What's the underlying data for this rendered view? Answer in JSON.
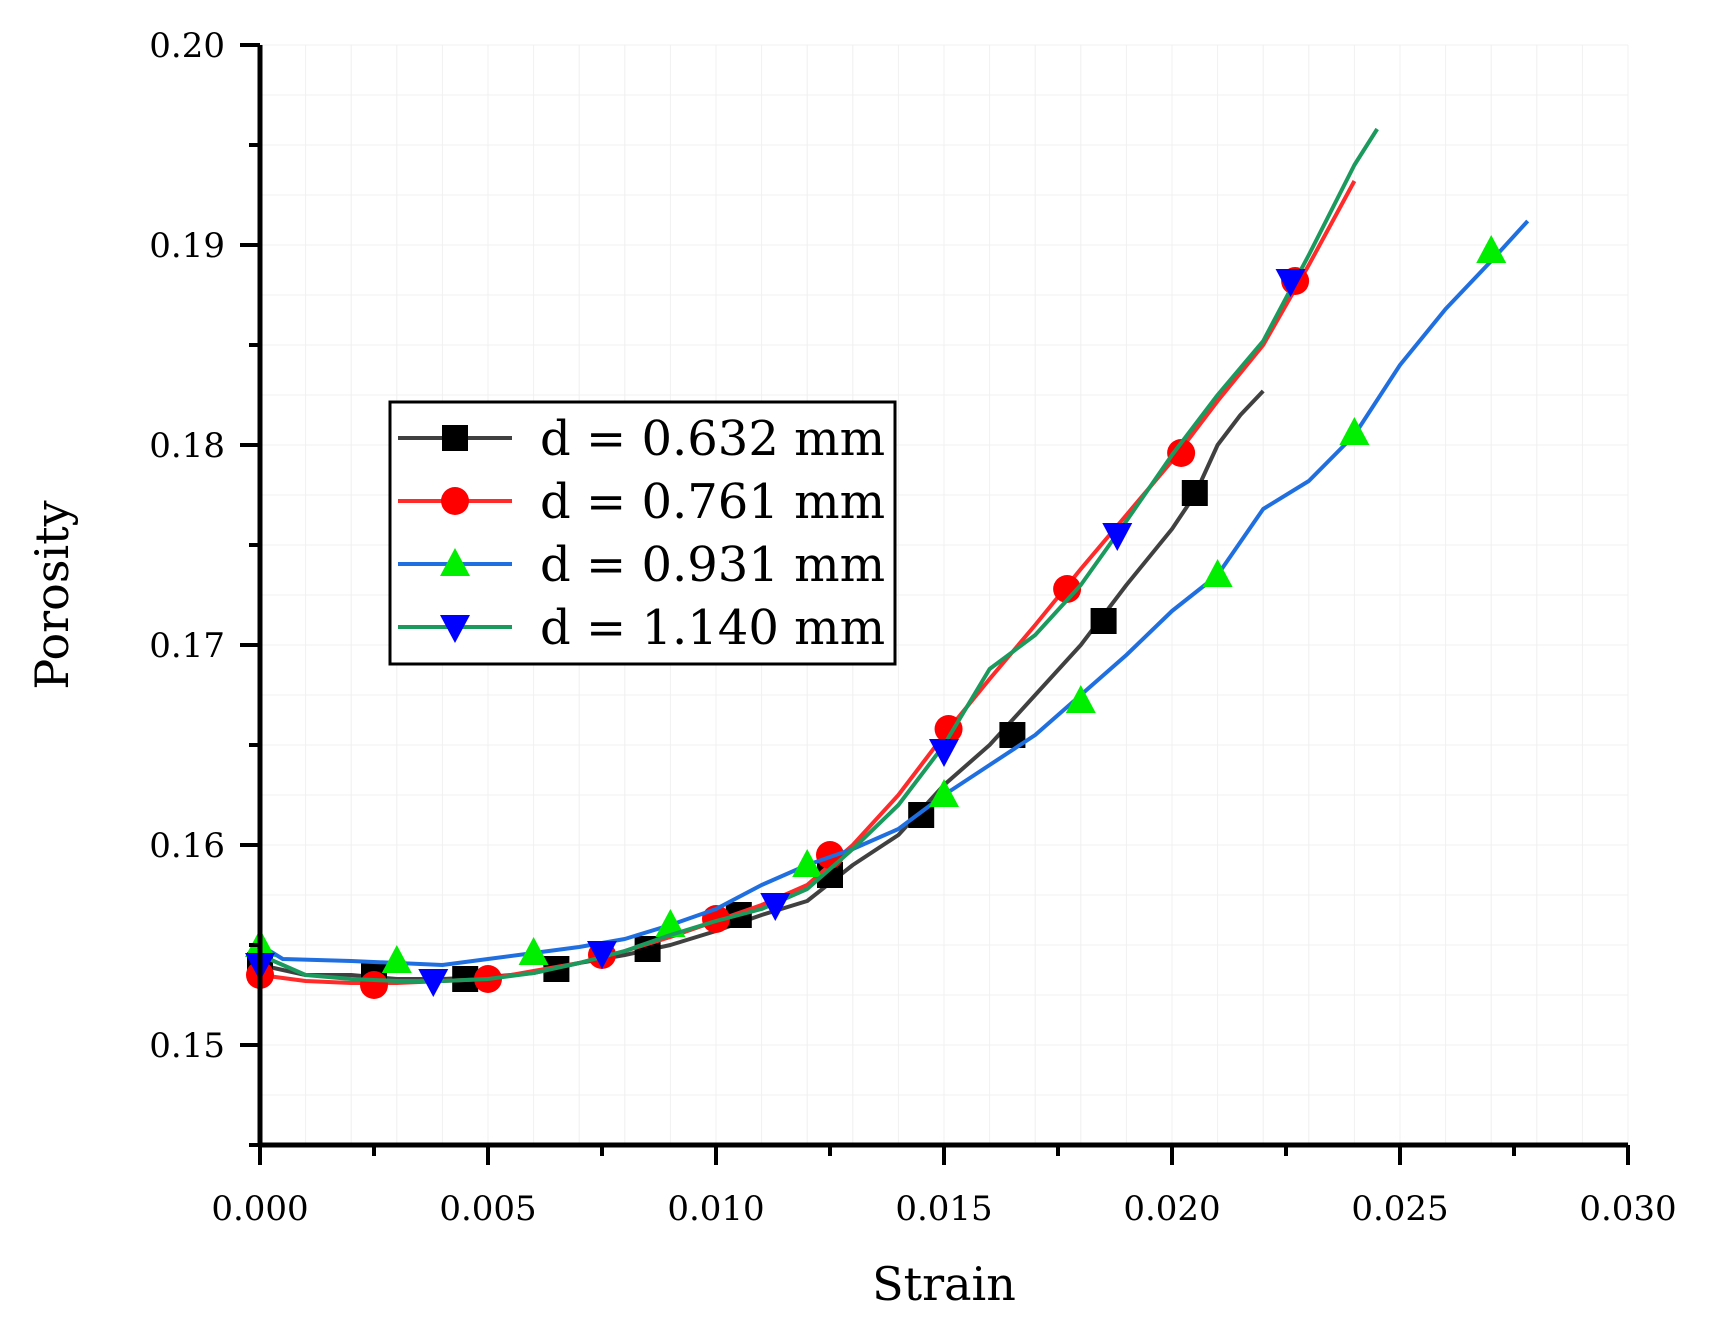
{
  "chart_data": {
    "type": "line",
    "title": "",
    "xlabel": "Strain",
    "ylabel": "Porosity",
    "xlim": [
      0.0,
      0.03
    ],
    "ylim": [
      0.145,
      0.2
    ],
    "xticks": [
      0.0,
      0.005,
      0.01,
      0.015,
      0.02,
      0.025,
      0.03
    ],
    "xtick_labels": [
      "0.000",
      "0.005",
      "0.010",
      "0.015",
      "0.020",
      "0.025",
      "0.030"
    ],
    "yticks": [
      0.15,
      0.16,
      0.17,
      0.18,
      0.19,
      0.2
    ],
    "ytick_labels": [
      "0.15",
      "0.16",
      "0.17",
      "0.18",
      "0.19",
      "0.20"
    ],
    "legend_position": "upper-left-center",
    "series": [
      {
        "name": "d = 0.632 mm",
        "color": "#404040",
        "marker": "square",
        "line": [
          [
            0,
            0.154
          ],
          [
            0.001,
            0.1535
          ],
          [
            0.002,
            0.1535
          ],
          [
            0.003,
            0.1533
          ],
          [
            0.004,
            0.1533
          ],
          [
            0.005,
            0.1534
          ],
          [
            0.006,
            0.1536
          ],
          [
            0.007,
            0.1541
          ],
          [
            0.008,
            0.1545
          ],
          [
            0.009,
            0.155
          ],
          [
            0.01,
            0.1557
          ],
          [
            0.011,
            0.1565
          ],
          [
            0.012,
            0.1572
          ],
          [
            0.013,
            0.159
          ],
          [
            0.014,
            0.1605
          ],
          [
            0.015,
            0.163
          ],
          [
            0.016,
            0.165
          ],
          [
            0.017,
            0.1675
          ],
          [
            0.018,
            0.17
          ],
          [
            0.019,
            0.173
          ],
          [
            0.02,
            0.1758
          ],
          [
            0.0205,
            0.1775
          ],
          [
            0.021,
            0.18
          ],
          [
            0.0215,
            0.1815
          ],
          [
            0.022,
            0.1827
          ]
        ],
        "markers": [
          [
            0,
            0.154
          ],
          [
            0.0025,
            0.1535
          ],
          [
            0.0045,
            0.1533
          ],
          [
            0.0065,
            0.1538
          ],
          [
            0.0085,
            0.1548
          ],
          [
            0.0105,
            0.1565
          ],
          [
            0.0125,
            0.1585
          ],
          [
            0.0145,
            0.1615
          ],
          [
            0.0165,
            0.1655
          ],
          [
            0.0185,
            0.1712
          ],
          [
            0.0205,
            0.1776
          ]
        ]
      },
      {
        "name": "d = 0.761 mm",
        "color": "#ff2a2a",
        "marker": "circle",
        "line": [
          [
            0,
            0.1535
          ],
          [
            0.001,
            0.1532
          ],
          [
            0.002,
            0.1531
          ],
          [
            0.003,
            0.1531
          ],
          [
            0.004,
            0.1532
          ],
          [
            0.005,
            0.1533
          ],
          [
            0.006,
            0.1537
          ],
          [
            0.007,
            0.1541
          ],
          [
            0.008,
            0.1547
          ],
          [
            0.009,
            0.1554
          ],
          [
            0.01,
            0.1562
          ],
          [
            0.011,
            0.157
          ],
          [
            0.012,
            0.158
          ],
          [
            0.013,
            0.16
          ],
          [
            0.014,
            0.1625
          ],
          [
            0.015,
            0.1655
          ],
          [
            0.016,
            0.1683
          ],
          [
            0.017,
            0.171
          ],
          [
            0.018,
            0.1738
          ],
          [
            0.019,
            0.1765
          ],
          [
            0.02,
            0.1792
          ],
          [
            0.021,
            0.1822
          ],
          [
            0.022,
            0.185
          ],
          [
            0.023,
            0.189
          ],
          [
            0.024,
            0.1932
          ]
        ],
        "markers": [
          [
            0,
            0.1535
          ],
          [
            0.0025,
            0.153
          ],
          [
            0.005,
            0.1533
          ],
          [
            0.0075,
            0.1545
          ],
          [
            0.01,
            0.1563
          ],
          [
            0.0125,
            0.1595
          ],
          [
            0.0151,
            0.1658
          ],
          [
            0.0177,
            0.1728
          ],
          [
            0.0202,
            0.1796
          ],
          [
            0.0227,
            0.1882
          ]
        ]
      },
      {
        "name": "d = 0.931 mm",
        "color": "#1f6fe0",
        "marker": "triangle-up",
        "line": [
          [
            0,
            0.155
          ],
          [
            0.0005,
            0.1543
          ],
          [
            0.002,
            0.1542
          ],
          [
            0.004,
            0.154
          ],
          [
            0.005,
            0.1543
          ],
          [
            0.006,
            0.1546
          ],
          [
            0.007,
            0.1549
          ],
          [
            0.008,
            0.1553
          ],
          [
            0.009,
            0.156
          ],
          [
            0.01,
            0.1568
          ],
          [
            0.011,
            0.158
          ],
          [
            0.012,
            0.159
          ],
          [
            0.013,
            0.1598
          ],
          [
            0.014,
            0.1608
          ],
          [
            0.015,
            0.1625
          ],
          [
            0.016,
            0.164
          ],
          [
            0.017,
            0.1655
          ],
          [
            0.018,
            0.1675
          ],
          [
            0.019,
            0.1695
          ],
          [
            0.02,
            0.1717
          ],
          [
            0.021,
            0.1735
          ],
          [
            0.022,
            0.1768
          ],
          [
            0.023,
            0.1782
          ],
          [
            0.024,
            0.1805
          ],
          [
            0.025,
            0.184
          ],
          [
            0.026,
            0.1868
          ],
          [
            0.027,
            0.1892
          ],
          [
            0.0278,
            0.1912
          ]
        ],
        "markers": [
          [
            0,
            0.155
          ],
          [
            0.003,
            0.1542
          ],
          [
            0.006,
            0.1546
          ],
          [
            0.009,
            0.156
          ],
          [
            0.012,
            0.159
          ],
          [
            0.015,
            0.1625
          ],
          [
            0.018,
            0.1672
          ],
          [
            0.021,
            0.1735
          ],
          [
            0.024,
            0.1806
          ],
          [
            0.027,
            0.1897
          ]
        ]
      },
      {
        "name": "d = 1.140 mm",
        "color": "#1a9a5c",
        "marker": "triangle-down",
        "line": [
          [
            0,
            0.1545
          ],
          [
            0.001,
            0.1535
          ],
          [
            0.002,
            0.1533
          ],
          [
            0.003,
            0.1532
          ],
          [
            0.004,
            0.1532
          ],
          [
            0.005,
            0.1533
          ],
          [
            0.006,
            0.1536
          ],
          [
            0.007,
            0.1541
          ],
          [
            0.008,
            0.1547
          ],
          [
            0.009,
            0.1555
          ],
          [
            0.01,
            0.1562
          ],
          [
            0.011,
            0.1568
          ],
          [
            0.012,
            0.1578
          ],
          [
            0.013,
            0.1598
          ],
          [
            0.014,
            0.162
          ],
          [
            0.015,
            0.165
          ],
          [
            0.016,
            0.1688
          ],
          [
            0.017,
            0.1705
          ],
          [
            0.018,
            0.173
          ],
          [
            0.019,
            0.1762
          ],
          [
            0.02,
            0.1795
          ],
          [
            0.021,
            0.1825
          ],
          [
            0.022,
            0.1852
          ],
          [
            0.023,
            0.1895
          ],
          [
            0.024,
            0.194
          ],
          [
            0.0245,
            0.1958
          ]
        ],
        "markers": [
          [
            0,
            0.154
          ],
          [
            0.0038,
            0.1532
          ],
          [
            0.0075,
            0.1546
          ],
          [
            0.0113,
            0.157
          ],
          [
            0.015,
            0.1647
          ],
          [
            0.0188,
            0.1755
          ],
          [
            0.0226,
            0.1882
          ]
        ]
      }
    ]
  }
}
